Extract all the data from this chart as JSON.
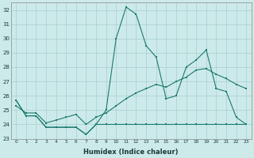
{
  "xlabel": "Humidex (Indice chaleur)",
  "x": [
    0,
    1,
    2,
    3,
    4,
    5,
    6,
    7,
    8,
    9,
    10,
    11,
    12,
    13,
    14,
    15,
    16,
    17,
    18,
    19,
    20,
    21,
    22,
    23
  ],
  "y_top": [
    25.7,
    24.6,
    24.6,
    23.8,
    23.8,
    23.8,
    23.8,
    23.3,
    24.0,
    25.0,
    30.0,
    32.2,
    31.7,
    29.5,
    28.7,
    25.8,
    26.0,
    28.0,
    28.5,
    29.2,
    26.5,
    26.3,
    24.5,
    24.0
  ],
  "y_mid": [
    25.3,
    24.8,
    24.8,
    24.1,
    24.3,
    24.5,
    24.7,
    24.0,
    24.5,
    24.8,
    25.3,
    25.8,
    26.2,
    26.5,
    26.8,
    26.6,
    27.0,
    27.3,
    27.8,
    27.9,
    27.5,
    27.2,
    26.8,
    26.5
  ],
  "y_bot": [
    25.7,
    24.6,
    24.6,
    23.8,
    23.8,
    23.8,
    23.8,
    23.3,
    24.0,
    24.0,
    24.0,
    24.0,
    24.0,
    24.0,
    24.0,
    24.0,
    24.0,
    24.0,
    24.0,
    24.0,
    24.0,
    24.0,
    24.0,
    24.0
  ],
  "color": "#1a7a6e",
  "bg_color": "#cdeaea",
  "grid_color": "#aacece",
  "ylim_min": 23,
  "ylim_max": 32,
  "xlim_min": 0,
  "xlim_max": 23
}
